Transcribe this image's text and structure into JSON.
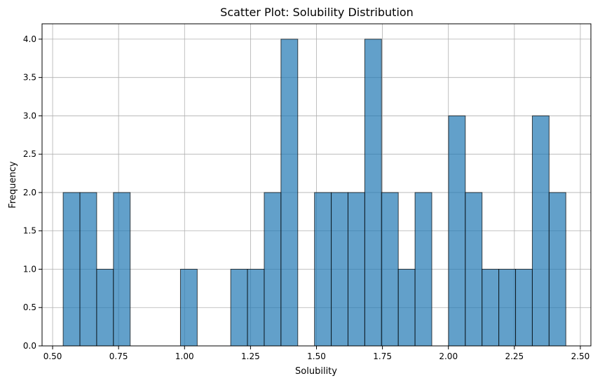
{
  "chart_data": {
    "type": "bar",
    "title": "Scatter Plot: Solubility Distribution",
    "xlabel": "Solubility",
    "ylabel": "Frequency",
    "xlim": [
      0.46,
      2.54
    ],
    "ylim": [
      0,
      4.2
    ],
    "grid": true,
    "bar_color": "#1f77b4",
    "bin_start": 0.54,
    "bin_width": 0.0635,
    "values": [
      2,
      2,
      1,
      2,
      0,
      0,
      0,
      1,
      0,
      0,
      1,
      1,
      2,
      4,
      0,
      2,
      2,
      2,
      4,
      2,
      1,
      2,
      0,
      3,
      2,
      1,
      1,
      1,
      3,
      2
    ],
    "xticks": [
      0.5,
      0.75,
      1.0,
      1.25,
      1.5,
      1.75,
      2.0,
      2.25,
      2.5
    ],
    "xtick_labels": [
      "0.50",
      "0.75",
      "1.00",
      "1.25",
      "1.50",
      "1.75",
      "2.00",
      "2.25",
      "2.50"
    ],
    "yticks": [
      0.0,
      0.5,
      1.0,
      1.5,
      2.0,
      2.5,
      3.0,
      3.5,
      4.0
    ],
    "ytick_labels": [
      "0.0",
      "0.5",
      "1.0",
      "1.5",
      "2.0",
      "2.5",
      "3.0",
      "3.5",
      "4.0"
    ]
  }
}
